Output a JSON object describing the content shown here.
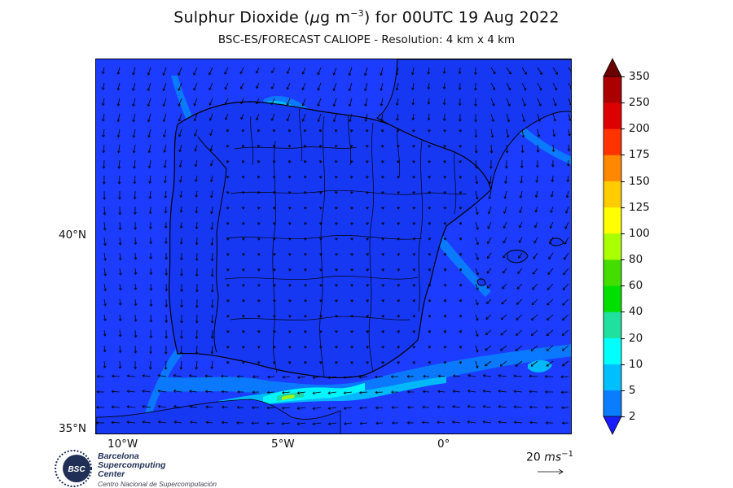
{
  "header": {
    "title_prefix": "Sulphur Dioxide (",
    "title_unit_mu": "μ",
    "title_unit_rest": "g m",
    "title_unit_exp": "−3",
    "title_suffix": ") for 00UTC 19 Aug 2022",
    "subtitle": "BSC-ES/FORECAST  CALIOPE - Resolution: 4 km x 4 km"
  },
  "axes": {
    "lat_labels": [
      "40°N",
      "35°N"
    ],
    "lon_labels": [
      "10°W",
      "5°W",
      "0°"
    ]
  },
  "colorbar": {
    "levels": [
      "2",
      "5",
      "10",
      "20",
      "40",
      "60",
      "80",
      "100",
      "125",
      "150",
      "175",
      "200",
      "250",
      "350"
    ],
    "colors": [
      "#1a4bff",
      "#0a7dff",
      "#00bfff",
      "#00ffff",
      "#20e0a0",
      "#00e000",
      "#44dd00",
      "#aaff00",
      "#ffff00",
      "#ffcc00",
      "#ff8800",
      "#ff3300",
      "#dd0000",
      "#aa0000",
      "#6a0000"
    ],
    "under_color": "#1a1aff",
    "over_color": "#6a0000"
  },
  "wind_reference": {
    "value": "20",
    "unit": "ms",
    "unit_exp": "−1"
  },
  "logo": {
    "badge": "BSC",
    "line1": "Barcelona",
    "line2": "Supercomputing",
    "line3": "Center",
    "line4": "Centro Nacional de Supercomputación"
  },
  "map": {
    "background_color": "#1c3cff",
    "land_color": "#1738f2",
    "border_color": "#000000"
  }
}
